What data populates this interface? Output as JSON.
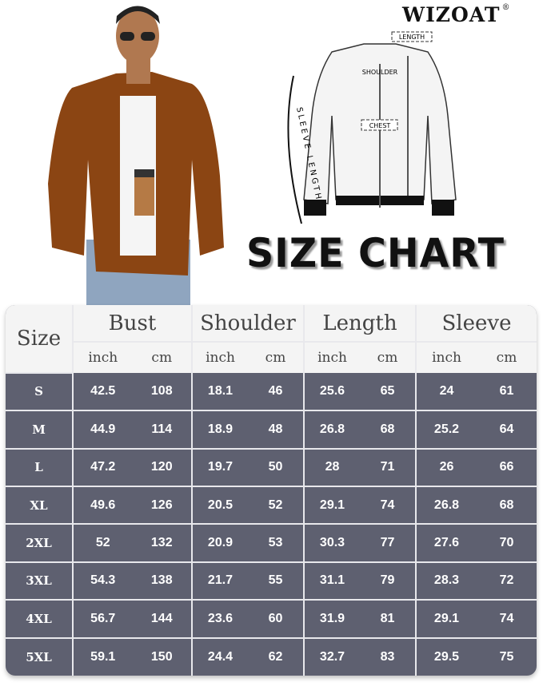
{
  "brand": {
    "name": "WIZOAT",
    "reg": "®"
  },
  "diagram": {
    "labels": {
      "length": "LENGTH",
      "shoulder": "SHOULDER",
      "chest": "CHEST",
      "sleeve_length": "SLEEVE LENGTH"
    }
  },
  "title": "SIZE CHART",
  "colors": {
    "header_bg": "#f4f4f4",
    "row_bg": "#5e6070",
    "jacket": "#8b4513"
  },
  "table": {
    "size_header": "Size",
    "groups": [
      "Bust",
      "Shoulder",
      "Length",
      "Sleeve"
    ],
    "units": [
      "inch",
      "cm"
    ],
    "rows": [
      {
        "size": "S",
        "values": [
          "42.5",
          "108",
          "18.1",
          "46",
          "25.6",
          "65",
          "24",
          "61"
        ]
      },
      {
        "size": "M",
        "values": [
          "44.9",
          "114",
          "18.9",
          "48",
          "26.8",
          "68",
          "25.2",
          "64"
        ]
      },
      {
        "size": "L",
        "values": [
          "47.2",
          "120",
          "19.7",
          "50",
          "28",
          "71",
          "26",
          "66"
        ]
      },
      {
        "size": "XL",
        "values": [
          "49.6",
          "126",
          "20.5",
          "52",
          "29.1",
          "74",
          "26.8",
          "68"
        ]
      },
      {
        "size": "2XL",
        "values": [
          "52",
          "132",
          "20.9",
          "53",
          "30.3",
          "77",
          "27.6",
          "70"
        ]
      },
      {
        "size": "3XL",
        "values": [
          "54.3",
          "138",
          "21.7",
          "55",
          "31.1",
          "79",
          "28.3",
          "72"
        ]
      },
      {
        "size": "4XL",
        "values": [
          "56.7",
          "144",
          "23.6",
          "60",
          "31.9",
          "81",
          "29.1",
          "74"
        ]
      },
      {
        "size": "5XL",
        "values": [
          "59.1",
          "150",
          "24.4",
          "62",
          "32.7",
          "83",
          "29.5",
          "75"
        ]
      }
    ]
  }
}
